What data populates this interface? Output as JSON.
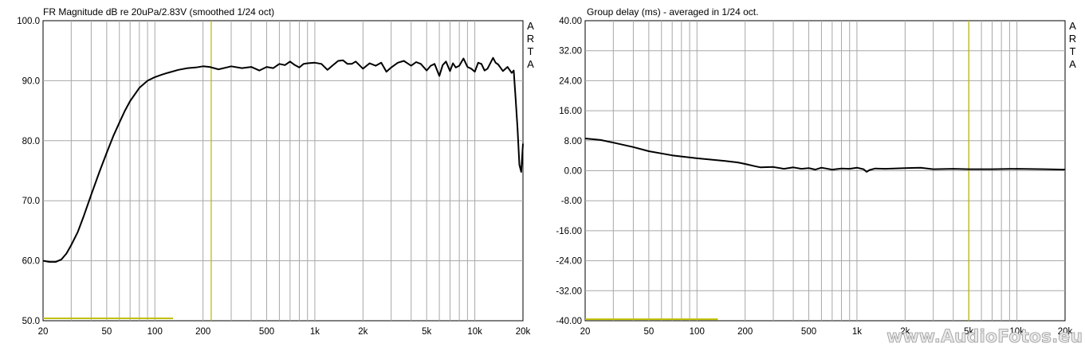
{
  "watermark": "www.AudioFotos.eu",
  "chart_data": [
    {
      "type": "line",
      "title": "FR Magnitude dB re 20uPa/2.83V (smoothed 1/24 oct)",
      "side_label": "ARTA",
      "xscale": "log",
      "xlim": [
        20,
        20000
      ],
      "ylim": [
        50,
        100
      ],
      "x_ticks": [
        20,
        50,
        100,
        200,
        500,
        1000,
        2000,
        5000,
        10000,
        20000
      ],
      "x_tick_labels": [
        "20",
        "50",
        "100",
        "200",
        "500",
        "1k",
        "2k",
        "5k",
        "10k",
        "20k"
      ],
      "y_ticks": [
        50,
        60,
        70,
        80,
        90,
        100
      ],
      "y_tick_labels": [
        "50.0",
        "60.0",
        "70.0",
        "80.0",
        "90.0",
        "100.0"
      ],
      "marker_x": 225,
      "marker_y": 50.4,
      "marker_y_xrange": [
        20,
        130
      ],
      "colors": {
        "curve": "#000000",
        "grid": "#a8a8a8",
        "marker": "#b8b800"
      },
      "series": [
        {
          "x": [
            20,
            22,
            24,
            26,
            28,
            30,
            33,
            36,
            40,
            45,
            50,
            55,
            60,
            65,
            70,
            80,
            90,
            100,
            110,
            120,
            140,
            160,
            180,
            200,
            220,
            250,
            280,
            300,
            350,
            400,
            450,
            500,
            550,
            600,
            650,
            700,
            750,
            800,
            850,
            900,
            1000,
            1100,
            1200,
            1300,
            1400,
            1500,
            1600,
            1700,
            1800,
            2000,
            2200,
            2400,
            2600,
            2800,
            3000,
            3300,
            3600,
            4000,
            4300,
            4600,
            5000,
            5300,
            5600,
            6000,
            6300,
            6600,
            7000,
            7300,
            7600,
            8000,
            8500,
            9000,
            9500,
            10000,
            10500,
            11000,
            11500,
            12000,
            13000,
            13500,
            14000,
            15000,
            16000,
            17000,
            17500,
            18000,
            18500,
            19000,
            19500,
            20000
          ],
          "y": [
            60.0,
            59.8,
            59.8,
            60.2,
            61.2,
            62.6,
            64.8,
            67.5,
            71.0,
            74.8,
            78.0,
            80.8,
            83.0,
            85.0,
            86.6,
            88.8,
            90.0,
            90.6,
            91.0,
            91.3,
            91.8,
            92.1,
            92.2,
            92.4,
            92.3,
            91.9,
            92.2,
            92.4,
            92.1,
            92.3,
            91.7,
            92.3,
            92.1,
            92.8,
            92.6,
            93.2,
            92.6,
            92.2,
            92.8,
            92.9,
            93.0,
            92.8,
            91.8,
            92.6,
            93.3,
            93.4,
            92.8,
            92.8,
            93.2,
            92.0,
            92.9,
            92.5,
            93.0,
            91.5,
            92.2,
            93.0,
            93.3,
            92.5,
            93.1,
            92.8,
            91.7,
            92.5,
            92.8,
            90.8,
            92.6,
            93.2,
            91.6,
            92.9,
            92.2,
            92.5,
            93.7,
            92.3,
            92.0,
            91.5,
            93.0,
            92.8,
            91.7,
            92.0,
            93.8,
            93.0,
            92.7,
            91.6,
            92.3,
            91.3,
            91.7,
            87.0,
            82.0,
            76.0,
            74.8,
            79.5
          ]
        }
      ]
    },
    {
      "type": "line",
      "title": "Group delay (ms) - averaged in 1/24 oct.",
      "side_label": "ARTA",
      "xscale": "log",
      "xlim": [
        20,
        20000
      ],
      "ylim": [
        -40,
        40
      ],
      "x_ticks": [
        20,
        50,
        100,
        200,
        500,
        1000,
        2000,
        5000,
        10000,
        20000
      ],
      "x_tick_labels": [
        "20",
        "50",
        "100",
        "200",
        "500",
        "1k",
        "2k",
        "5k",
        "10k",
        "20k"
      ],
      "y_ticks": [
        -40,
        -32,
        -24,
        -16,
        -8,
        0,
        8,
        16,
        24,
        32,
        40
      ],
      "y_tick_labels": [
        "-40.00",
        "-32.00",
        "-24.00",
        "-16.00",
        "-8.00",
        "0.00",
        "8.00",
        "16.00",
        "24.00",
        "32.00",
        "40.00"
      ],
      "marker_x": 5000,
      "marker_y": -39.6,
      "marker_y_xrange": [
        20,
        135
      ],
      "colors": {
        "curve": "#000000",
        "grid": "#a8a8a8",
        "marker": "#b8b800"
      },
      "series": [
        {
          "x": [
            20,
            25,
            30,
            40,
            50,
            60,
            70,
            80,
            100,
            120,
            150,
            180,
            200,
            230,
            250,
            300,
            350,
            400,
            450,
            500,
            550,
            600,
            700,
            800,
            900,
            1000,
            1100,
            1150,
            1200,
            1300,
            1500,
            2000,
            2500,
            3000,
            4000,
            5000,
            7000,
            10000,
            15000,
            20000
          ],
          "y": [
            8.6,
            8.2,
            7.5,
            6.3,
            5.2,
            4.6,
            4.1,
            3.8,
            3.3,
            3.0,
            2.6,
            2.2,
            1.8,
            1.2,
            0.9,
            1.0,
            0.5,
            0.9,
            0.5,
            0.7,
            0.3,
            0.8,
            0.3,
            0.6,
            0.5,
            0.8,
            0.4,
            -0.3,
            0.2,
            0.6,
            0.5,
            0.7,
            0.8,
            0.4,
            0.5,
            0.4,
            0.4,
            0.5,
            0.4,
            0.3
          ]
        }
      ]
    }
  ]
}
